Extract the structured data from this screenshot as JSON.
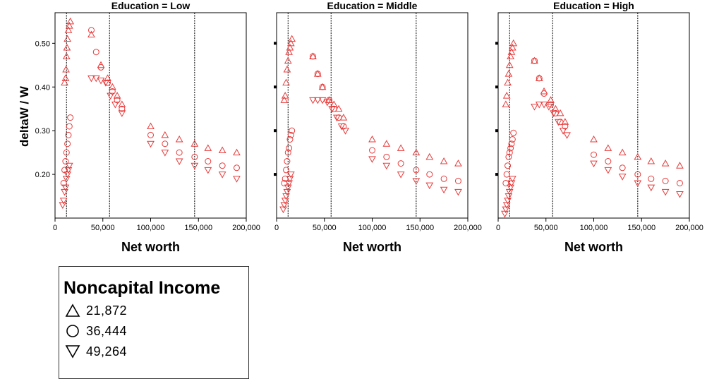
{
  "chart_data": {
    "type": "scatter",
    "ylabel": "deltaW / W",
    "xlabel": "Net worth",
    "xlim": [
      0,
      200000
    ],
    "ylim": [
      0.1,
      0.57
    ],
    "xticks": [
      "0",
      "50,000",
      "100,000",
      "150,000",
      "200,000"
    ],
    "yticks": [
      "0.50",
      "0.40",
      "0.30",
      "0.20"
    ],
    "reference_lines_x": [
      12000,
      57000,
      146000
    ],
    "marker_color": "#e83a3a",
    "legend": {
      "title": "Noncapital Income",
      "items": [
        {
          "label": "21,872",
          "marker": "triangle-up"
        },
        {
          "label": "36,444",
          "marker": "circle"
        },
        {
          "label": "49,264",
          "marker": "triangle-down"
        }
      ]
    },
    "panels": [
      {
        "title": "Education = Low",
        "series": [
          {
            "name": "21,872",
            "marker": "triangle-up",
            "x": [
              10000,
              11000,
              11500,
              12000,
              12500,
              13000,
              14000,
              15000,
              16000,
              38000,
              48000,
              55000,
              60000,
              65000,
              70000,
              100000,
              115000,
              130000,
              146000,
              160000,
              175000,
              190000
            ],
            "y": [
              0.41,
              0.42,
              0.44,
              0.47,
              0.49,
              0.51,
              0.53,
              0.54,
              0.55,
              0.52,
              0.45,
              0.42,
              0.4,
              0.38,
              0.36,
              0.31,
              0.29,
              0.28,
              0.27,
              0.26,
              0.255,
              0.25
            ]
          },
          {
            "name": "36,444",
            "marker": "circle",
            "x": [
              9000,
              10000,
              11000,
              12000,
              13000,
              14000,
              15000,
              16000,
              38000,
              43000,
              48000,
              55000,
              60000,
              65000,
              70000,
              100000,
              115000,
              130000,
              146000,
              160000,
              175000,
              190000
            ],
            "y": [
              0.18,
              0.21,
              0.23,
              0.25,
              0.27,
              0.29,
              0.31,
              0.33,
              0.53,
              0.48,
              0.445,
              0.41,
              0.39,
              0.37,
              0.35,
              0.29,
              0.27,
              0.25,
              0.24,
              0.23,
              0.22,
              0.215
            ]
          },
          {
            "name": "49,264",
            "marker": "triangle-down",
            "x": [
              8000,
              9000,
              10000,
              11000,
              12000,
              13000,
              14000,
              15000,
              38000,
              43000,
              48000,
              53000,
              58000,
              63000,
              70000,
              100000,
              115000,
              130000,
              146000,
              160000,
              175000,
              190000
            ],
            "y": [
              0.13,
              0.14,
              0.16,
              0.17,
              0.19,
              0.2,
              0.21,
              0.22,
              0.42,
              0.42,
              0.415,
              0.41,
              0.38,
              0.36,
              0.34,
              0.27,
              0.25,
              0.23,
              0.22,
              0.21,
              0.2,
              0.19
            ]
          }
        ]
      },
      {
        "title": "Education = Middle",
        "series": [
          {
            "name": "21,872",
            "marker": "triangle-up",
            "x": [
              8000,
              9000,
              10000,
              11000,
              12000,
              13000,
              14000,
              15000,
              16000,
              38000,
              43000,
              48000,
              55000,
              60000,
              65000,
              70000,
              100000,
              115000,
              130000,
              146000,
              160000,
              175000,
              190000
            ],
            "y": [
              0.37,
              0.38,
              0.41,
              0.44,
              0.46,
              0.48,
              0.49,
              0.5,
              0.51,
              0.47,
              0.43,
              0.4,
              0.37,
              0.36,
              0.35,
              0.33,
              0.28,
              0.27,
              0.26,
              0.25,
              0.24,
              0.23,
              0.225
            ]
          },
          {
            "name": "36,444",
            "marker": "circle",
            "x": [
              8000,
              9000,
              10000,
              11000,
              12000,
              13000,
              14000,
              15000,
              16000,
              38000,
              43000,
              48000,
              55000,
              60000,
              65000,
              70000,
              100000,
              115000,
              130000,
              146000,
              160000,
              175000,
              190000
            ],
            "y": [
              0.18,
              0.19,
              0.21,
              0.23,
              0.25,
              0.26,
              0.28,
              0.29,
              0.3,
              0.47,
              0.43,
              0.4,
              0.37,
              0.35,
              0.33,
              0.31,
              0.255,
              0.24,
              0.225,
              0.21,
              0.2,
              0.19,
              0.185
            ]
          },
          {
            "name": "49,264",
            "marker": "triangle-down",
            "x": [
              7000,
              8000,
              9000,
              10000,
              11000,
              12000,
              13000,
              14000,
              15000,
              38000,
              43000,
              48000,
              53000,
              58000,
              63000,
              68000,
              72000,
              100000,
              115000,
              130000,
              146000,
              160000,
              175000,
              190000
            ],
            "y": [
              0.12,
              0.13,
              0.14,
              0.15,
              0.16,
              0.17,
              0.18,
              0.19,
              0.2,
              0.37,
              0.37,
              0.37,
              0.365,
              0.35,
              0.33,
              0.31,
              0.3,
              0.235,
              0.22,
              0.2,
              0.185,
              0.175,
              0.165,
              0.16
            ]
          }
        ]
      },
      {
        "title": "Education = High",
        "series": [
          {
            "name": "21,872",
            "marker": "triangle-up",
            "x": [
              8000,
              9000,
              10000,
              11000,
              12000,
              13000,
              14000,
              15000,
              16000,
              38000,
              43000,
              48000,
              55000,
              60000,
              65000,
              70000,
              100000,
              115000,
              130000,
              146000,
              160000,
              175000,
              190000
            ],
            "y": [
              0.36,
              0.38,
              0.41,
              0.43,
              0.45,
              0.47,
              0.48,
              0.49,
              0.5,
              0.46,
              0.42,
              0.39,
              0.37,
              0.35,
              0.34,
              0.32,
              0.28,
              0.26,
              0.25,
              0.24,
              0.23,
              0.225,
              0.22
            ]
          },
          {
            "name": "36,444",
            "marker": "circle",
            "x": [
              8000,
              9000,
              10000,
              11000,
              12000,
              13000,
              14000,
              15000,
              16000,
              38000,
              43000,
              48000,
              55000,
              60000,
              65000,
              70000,
              100000,
              115000,
              130000,
              146000,
              160000,
              175000,
              190000
            ],
            "y": [
              0.18,
              0.2,
              0.22,
              0.24,
              0.25,
              0.26,
              0.27,
              0.28,
              0.295,
              0.46,
              0.42,
              0.385,
              0.36,
              0.34,
              0.32,
              0.31,
              0.245,
              0.23,
              0.215,
              0.2,
              0.19,
              0.185,
              0.18
            ]
          },
          {
            "name": "49,264",
            "marker": "triangle-down",
            "x": [
              7000,
              8000,
              9000,
              10000,
              11000,
              12000,
              13000,
              14000,
              15000,
              38000,
              43000,
              48000,
              53000,
              58000,
              63000,
              68000,
              72000,
              100000,
              115000,
              130000,
              146000,
              160000,
              175000,
              190000
            ],
            "y": [
              0.11,
              0.12,
              0.13,
              0.14,
              0.15,
              0.16,
              0.17,
              0.18,
              0.19,
              0.355,
              0.36,
              0.36,
              0.355,
              0.34,
              0.32,
              0.3,
              0.29,
              0.225,
              0.21,
              0.195,
              0.18,
              0.17,
              0.16,
              0.155
            ]
          }
        ]
      }
    ]
  }
}
